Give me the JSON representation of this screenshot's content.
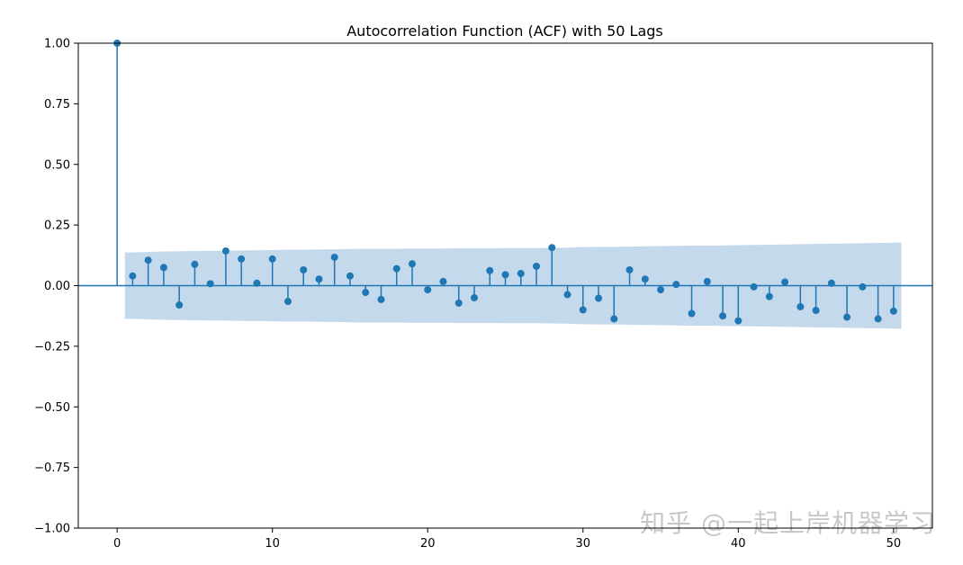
{
  "chart_data": {
    "type": "stem",
    "title": "Autocorrelation Function (ACF) with 50 Lags",
    "xlabel": "",
    "ylabel": "",
    "xlim": [
      -2.5,
      52.5
    ],
    "ylim": [
      -1.0,
      1.0
    ],
    "x_ticks": [
      0,
      10,
      20,
      30,
      40,
      50
    ],
    "x_tick_labels": [
      "0",
      "10",
      "20",
      "30",
      "40",
      "50"
    ],
    "y_ticks": [
      -1.0,
      -0.75,
      -0.5,
      -0.25,
      0.0,
      0.25,
      0.5,
      0.75,
      1.0
    ],
    "y_tick_labels": [
      "−1.00",
      "−0.75",
      "−0.50",
      "−0.25",
      "0.00",
      "0.25",
      "0.50",
      "0.75",
      "1.00"
    ],
    "grid": false,
    "lags": [
      0,
      1,
      2,
      3,
      4,
      5,
      6,
      7,
      8,
      9,
      10,
      11,
      12,
      13,
      14,
      15,
      16,
      17,
      18,
      19,
      20,
      21,
      22,
      23,
      24,
      25,
      26,
      27,
      28,
      29,
      30,
      31,
      32,
      33,
      34,
      35,
      36,
      37,
      38,
      39,
      40,
      41,
      42,
      43,
      44,
      45,
      46,
      47,
      48,
      49,
      50
    ],
    "acf": [
      1.0,
      0.04,
      0.105,
      0.075,
      -0.08,
      0.088,
      0.008,
      0.143,
      0.11,
      0.01,
      0.11,
      -0.065,
      0.065,
      0.027,
      0.117,
      0.04,
      -0.028,
      -0.057,
      0.07,
      0.09,
      -0.017,
      0.017,
      -0.072,
      -0.05,
      0.062,
      0.045,
      0.05,
      0.08,
      0.157,
      -0.037,
      -0.1,
      -0.052,
      -0.137,
      0.065,
      0.027,
      -0.017,
      0.005,
      -0.115,
      0.017,
      -0.125,
      -0.145,
      -0.005,
      -0.045,
      0.015,
      -0.087,
      -0.102,
      0.01,
      -0.13,
      -0.005,
      -0.137,
      -0.105
    ],
    "confint_upper": [
      0.137,
      0.137,
      0.139,
      0.141,
      0.142,
      0.143,
      0.144,
      0.144,
      0.146,
      0.146,
      0.147,
      0.148,
      0.148,
      0.149,
      0.15,
      0.151,
      0.152,
      0.152,
      0.152,
      0.153,
      0.153,
      0.153,
      0.154,
      0.154,
      0.154,
      0.155,
      0.155,
      0.155,
      0.156,
      0.157,
      0.159,
      0.16,
      0.16,
      0.161,
      0.162,
      0.163,
      0.164,
      0.165,
      0.165,
      0.166,
      0.167,
      0.168,
      0.169,
      0.17,
      0.171,
      0.172,
      0.173,
      0.174,
      0.175,
      0.176,
      0.177
    ],
    "colors": {
      "stem": "#1f77b4",
      "band": "#c5d9ec",
      "zero_line": "#1f77b4",
      "axes": "#000000"
    }
  },
  "watermark": "知乎 @一起上岸机器学习"
}
